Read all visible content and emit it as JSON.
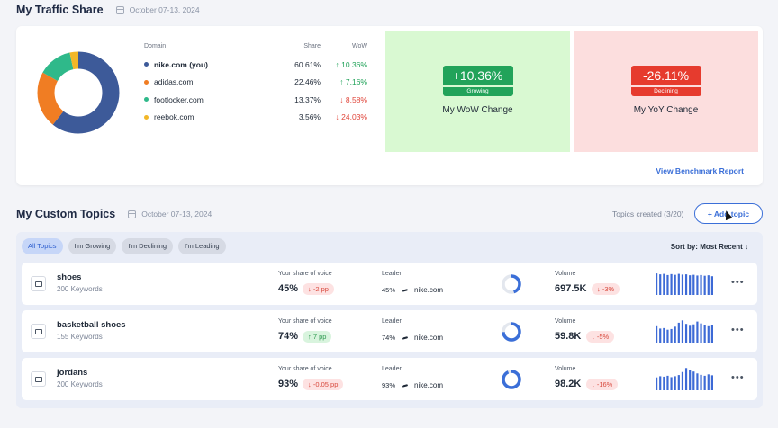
{
  "traffic": {
    "title": "My Traffic Share",
    "date": "October 07-13, 2024",
    "headers": {
      "domain": "Domain",
      "share": "Share",
      "wow": "WoW"
    },
    "domains": [
      {
        "name": "nike.com (you)",
        "share": "60.61%",
        "wow": "10.36%",
        "dir": "up",
        "color": "#3d5a99",
        "value": 60.61
      },
      {
        "name": "adidas.com",
        "share": "22.46%",
        "wow": "7.16%",
        "dir": "up",
        "color": "#f07d23",
        "value": 22.46
      },
      {
        "name": "footlocker.com",
        "share": "13.37%",
        "wow": "8.58%",
        "dir": "down",
        "color": "#2fb98a",
        "value": 13.37
      },
      {
        "name": "reebok.com",
        "share": "3.56%",
        "wow": "24.03%",
        "dir": "down",
        "color": "#f2b728",
        "value": 3.56
      }
    ],
    "wow_change": {
      "value": "+10.36%",
      "status": "Growing",
      "label": "My WoW Change"
    },
    "yoy_change": {
      "value": "-26.11%",
      "status": "Declining",
      "label": "My YoY Change"
    },
    "benchmark_link": "View Benchmark Report"
  },
  "topics": {
    "title": "My Custom Topics",
    "date": "October 07-13, 2024",
    "created": "Topics created (3/20)",
    "add_label": "+ Add topic",
    "filters": [
      "All Topics",
      "I'm Growing",
      "I'm Declining",
      "I'm Leading"
    ],
    "sort_label": "Sort by: Most Recent",
    "col_labels": {
      "sov": "Your share of voice",
      "leader": "Leader",
      "volume": "Volume"
    },
    "rows": [
      {
        "name": "shoes",
        "keywords": "200 Keywords",
        "sov": "45%",
        "sov_change": "-2 pp",
        "sov_dir": "down",
        "leader_pct": "45%",
        "leader": "nike.com",
        "sov_fraction": 0.45,
        "volume": "697.5K",
        "vol_change": "-3%",
        "bars": [
          0.92,
          0.88,
          0.9,
          0.85,
          0.89,
          0.86,
          0.9,
          0.87,
          0.88,
          0.84,
          0.86,
          0.83,
          0.85,
          0.82,
          0.84,
          0.8
        ]
      },
      {
        "name": "basketball shoes",
        "keywords": "155 Keywords",
        "sov": "74%",
        "sov_change": "7 pp",
        "sov_dir": "up",
        "leader_pct": "74%",
        "leader": "nike.com",
        "sov_fraction": 0.74,
        "volume": "59.8K",
        "vol_change": "-5%",
        "bars": [
          0.7,
          0.6,
          0.62,
          0.55,
          0.58,
          0.68,
          0.85,
          0.95,
          0.8,
          0.72,
          0.78,
          0.9,
          0.82,
          0.74,
          0.7,
          0.76
        ]
      },
      {
        "name": "jordans",
        "keywords": "200 Keywords",
        "sov": "93%",
        "sov_change": "-0.05 pp",
        "sov_dir": "down",
        "leader_pct": "93%",
        "leader": "nike.com",
        "sov_fraction": 0.93,
        "volume": "98.2K",
        "vol_change": "-16%",
        "bars": [
          0.55,
          0.6,
          0.58,
          0.62,
          0.56,
          0.6,
          0.65,
          0.78,
          0.95,
          0.88,
          0.8,
          0.72,
          0.66,
          0.62,
          0.68,
          0.64
        ]
      }
    ]
  }
}
